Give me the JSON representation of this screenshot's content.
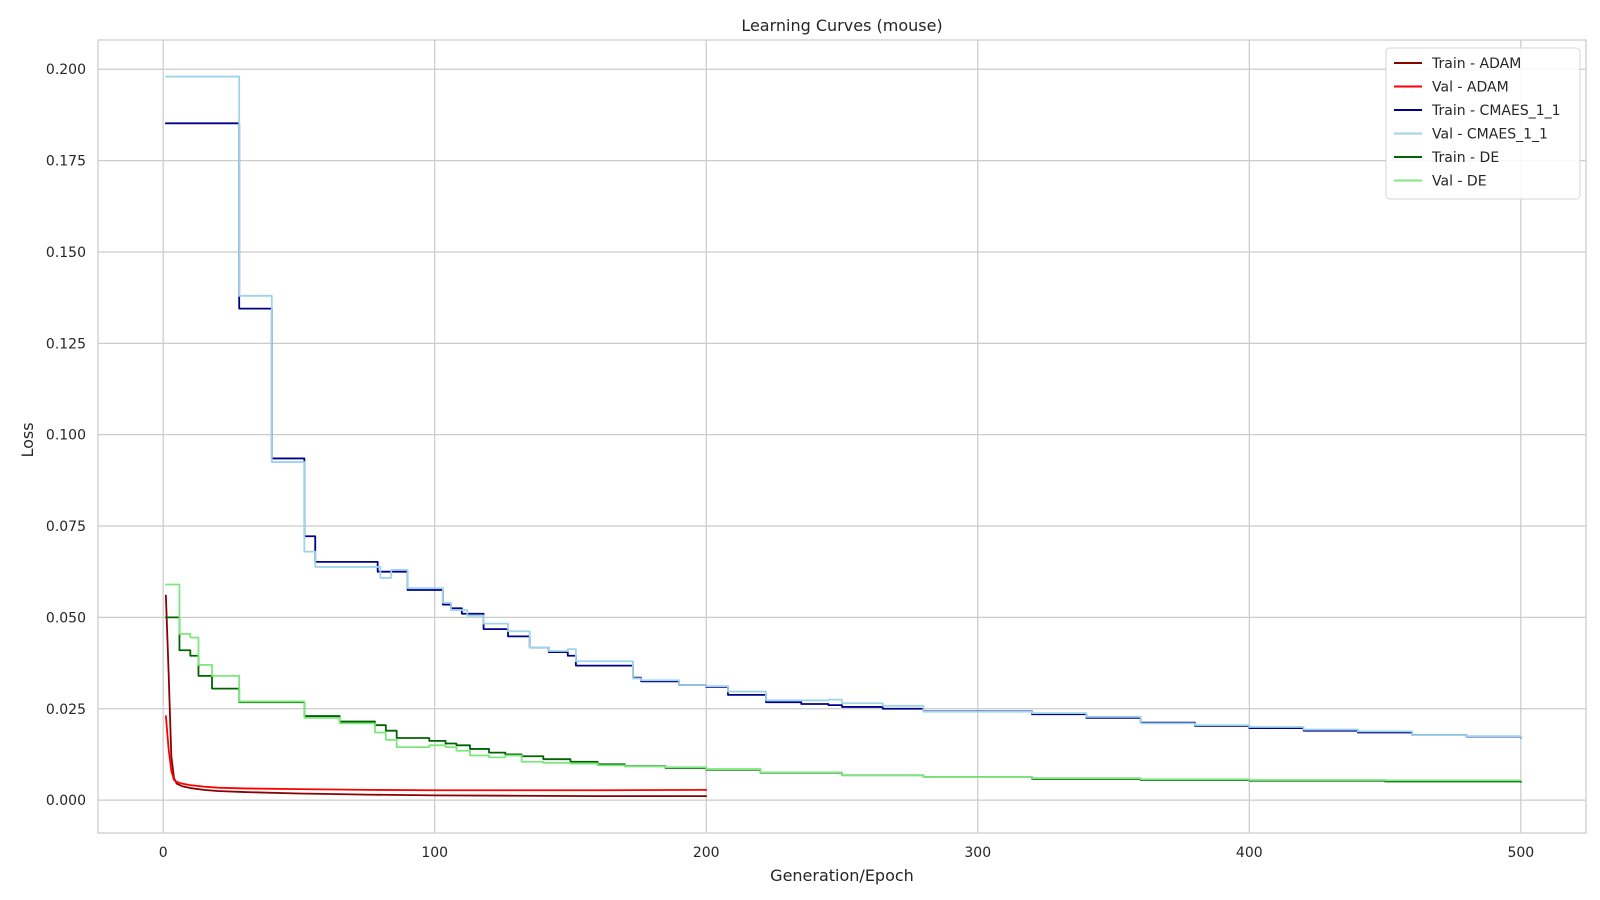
{
  "chart_data": {
    "type": "line",
    "title": "Learning Curves (mouse)",
    "xlabel": "Generation/Epoch",
    "ylabel": "Loss",
    "xlim": [
      -24,
      524
    ],
    "ylim": [
      -0.009,
      0.208
    ],
    "xticks": [
      0,
      100,
      200,
      300,
      400,
      500
    ],
    "xtick_labels": [
      "0",
      "100",
      "200",
      "300",
      "400",
      "500"
    ],
    "yticks": [
      0.0,
      0.025,
      0.05,
      0.075,
      0.1,
      0.125,
      0.15,
      0.175,
      0.2
    ],
    "ytick_labels": [
      "0.000",
      "0.025",
      "0.050",
      "0.075",
      "0.100",
      "0.125",
      "0.150",
      "0.175",
      "0.200"
    ],
    "grid": true,
    "legend_position": "top-right",
    "series": [
      {
        "name": "Train - ADAM",
        "color": "#8b0000",
        "step": false,
        "points": [
          [
            1,
            0.056
          ],
          [
            2,
            0.035
          ],
          [
            3,
            0.012
          ],
          [
            4,
            0.006
          ],
          [
            5,
            0.0045
          ],
          [
            7,
            0.0038
          ],
          [
            10,
            0.0033
          ],
          [
            15,
            0.0028
          ],
          [
            20,
            0.0025
          ],
          [
            30,
            0.0022
          ],
          [
            50,
            0.0018
          ],
          [
            75,
            0.0015
          ],
          [
            100,
            0.0013
          ],
          [
            130,
            0.0012
          ],
          [
            160,
            0.0011
          ],
          [
            200,
            0.0011
          ]
        ]
      },
      {
        "name": "Val - ADAM",
        "color": "#ff0000",
        "step": false,
        "points": [
          [
            1,
            0.023
          ],
          [
            2,
            0.014
          ],
          [
            3,
            0.008
          ],
          [
            4,
            0.0055
          ],
          [
            5,
            0.005
          ],
          [
            7,
            0.0045
          ],
          [
            10,
            0.0041
          ],
          [
            15,
            0.0037
          ],
          [
            20,
            0.0034
          ],
          [
            30,
            0.0032
          ],
          [
            50,
            0.003
          ],
          [
            75,
            0.0028
          ],
          [
            100,
            0.0027
          ],
          [
            130,
            0.0027
          ],
          [
            160,
            0.0027
          ],
          [
            200,
            0.0028
          ]
        ]
      },
      {
        "name": "Train - CMAES_1_1",
        "color": "#00008b",
        "step": true,
        "points": [
          [
            1,
            0.1852
          ],
          [
            28,
            0.1345
          ],
          [
            40,
            0.0935
          ],
          [
            52,
            0.0722
          ],
          [
            56,
            0.0652
          ],
          [
            79,
            0.0625
          ],
          [
            90,
            0.0575
          ],
          [
            103,
            0.0535
          ],
          [
            106,
            0.0525
          ],
          [
            110,
            0.051
          ],
          [
            118,
            0.0468
          ],
          [
            127,
            0.0448
          ],
          [
            135,
            0.0418
          ],
          [
            142,
            0.0405
          ],
          [
            149,
            0.0395
          ],
          [
            152,
            0.0368
          ],
          [
            173,
            0.0335
          ],
          [
            176,
            0.0325
          ],
          [
            190,
            0.0315
          ],
          [
            200,
            0.031
          ],
          [
            208,
            0.0288
          ],
          [
            222,
            0.0268
          ],
          [
            235,
            0.0263
          ],
          [
            245,
            0.026
          ],
          [
            250,
            0.0255
          ],
          [
            265,
            0.025
          ],
          [
            280,
            0.0243
          ],
          [
            320,
            0.0235
          ],
          [
            340,
            0.0225
          ],
          [
            360,
            0.0212
          ],
          [
            380,
            0.0203
          ],
          [
            400,
            0.0197
          ],
          [
            420,
            0.019
          ],
          [
            440,
            0.0185
          ],
          [
            460,
            0.0178
          ],
          [
            480,
            0.0174
          ],
          [
            500,
            0.0171
          ]
        ]
      },
      {
        "name": "Val - CMAES_1_1",
        "color": "#9fd3ea",
        "step": true,
        "points": [
          [
            1,
            0.198
          ],
          [
            27,
            0.198
          ],
          [
            28,
            0.138
          ],
          [
            40,
            0.0925
          ],
          [
            52,
            0.068
          ],
          [
            56,
            0.0638
          ],
          [
            80,
            0.0608
          ],
          [
            84,
            0.063
          ],
          [
            90,
            0.058
          ],
          [
            103,
            0.054
          ],
          [
            106,
            0.052
          ],
          [
            112,
            0.0505
          ],
          [
            118,
            0.0483
          ],
          [
            127,
            0.0462
          ],
          [
            135,
            0.0418
          ],
          [
            142,
            0.0408
          ],
          [
            149,
            0.0413
          ],
          [
            152,
            0.038
          ],
          [
            173,
            0.0333
          ],
          [
            176,
            0.0328
          ],
          [
            190,
            0.0315
          ],
          [
            200,
            0.0312
          ],
          [
            208,
            0.0297
          ],
          [
            222,
            0.0273
          ],
          [
            245,
            0.0275
          ],
          [
            250,
            0.0265
          ],
          [
            265,
            0.0258
          ],
          [
            280,
            0.0242
          ],
          [
            320,
            0.0238
          ],
          [
            340,
            0.0228
          ],
          [
            360,
            0.021
          ],
          [
            380,
            0.0205
          ],
          [
            400,
            0.02
          ],
          [
            420,
            0.0193
          ],
          [
            440,
            0.0188
          ],
          [
            460,
            0.0178
          ],
          [
            480,
            0.0175
          ],
          [
            500,
            0.0172
          ]
        ]
      },
      {
        "name": "Train - DE",
        "color": "#006400",
        "step": true,
        "points": [
          [
            1,
            0.05
          ],
          [
            6,
            0.041
          ],
          [
            10,
            0.0395
          ],
          [
            13,
            0.034
          ],
          [
            18,
            0.0305
          ],
          [
            28,
            0.0268
          ],
          [
            52,
            0.023
          ],
          [
            65,
            0.0215
          ],
          [
            78,
            0.0205
          ],
          [
            82,
            0.019
          ],
          [
            86,
            0.017
          ],
          [
            98,
            0.0162
          ],
          [
            104,
            0.0155
          ],
          [
            108,
            0.015
          ],
          [
            113,
            0.014
          ],
          [
            120,
            0.013
          ],
          [
            126,
            0.0125
          ],
          [
            132,
            0.012
          ],
          [
            140,
            0.0112
          ],
          [
            150,
            0.0105
          ],
          [
            160,
            0.0098
          ],
          [
            170,
            0.0093
          ],
          [
            185,
            0.0088
          ],
          [
            200,
            0.0083
          ],
          [
            220,
            0.0075
          ],
          [
            250,
            0.0068
          ],
          [
            280,
            0.0063
          ],
          [
            320,
            0.0058
          ],
          [
            360,
            0.0055
          ],
          [
            400,
            0.0053
          ],
          [
            450,
            0.0051
          ],
          [
            500,
            0.005
          ]
        ]
      },
      {
        "name": "Val - DE",
        "color": "#7ee77e",
        "step": true,
        "points": [
          [
            1,
            0.059
          ],
          [
            6,
            0.0455
          ],
          [
            10,
            0.0445
          ],
          [
            13,
            0.037
          ],
          [
            18,
            0.034
          ],
          [
            28,
            0.027
          ],
          [
            52,
            0.0225
          ],
          [
            65,
            0.021
          ],
          [
            78,
            0.0185
          ],
          [
            82,
            0.0165
          ],
          [
            86,
            0.0145
          ],
          [
            98,
            0.015
          ],
          [
            104,
            0.0145
          ],
          [
            108,
            0.0135
          ],
          [
            113,
            0.0122
          ],
          [
            120,
            0.0117
          ],
          [
            126,
            0.0122
          ],
          [
            132,
            0.0105
          ],
          [
            140,
            0.0102
          ],
          [
            150,
            0.01
          ],
          [
            160,
            0.0095
          ],
          [
            170,
            0.0092
          ],
          [
            185,
            0.009
          ],
          [
            200,
            0.0085
          ],
          [
            220,
            0.0076
          ],
          [
            250,
            0.0068
          ],
          [
            280,
            0.0063
          ],
          [
            320,
            0.006
          ],
          [
            360,
            0.0057
          ],
          [
            400,
            0.0055
          ],
          [
            450,
            0.0054
          ],
          [
            500,
            0.0054
          ]
        ]
      }
    ]
  }
}
